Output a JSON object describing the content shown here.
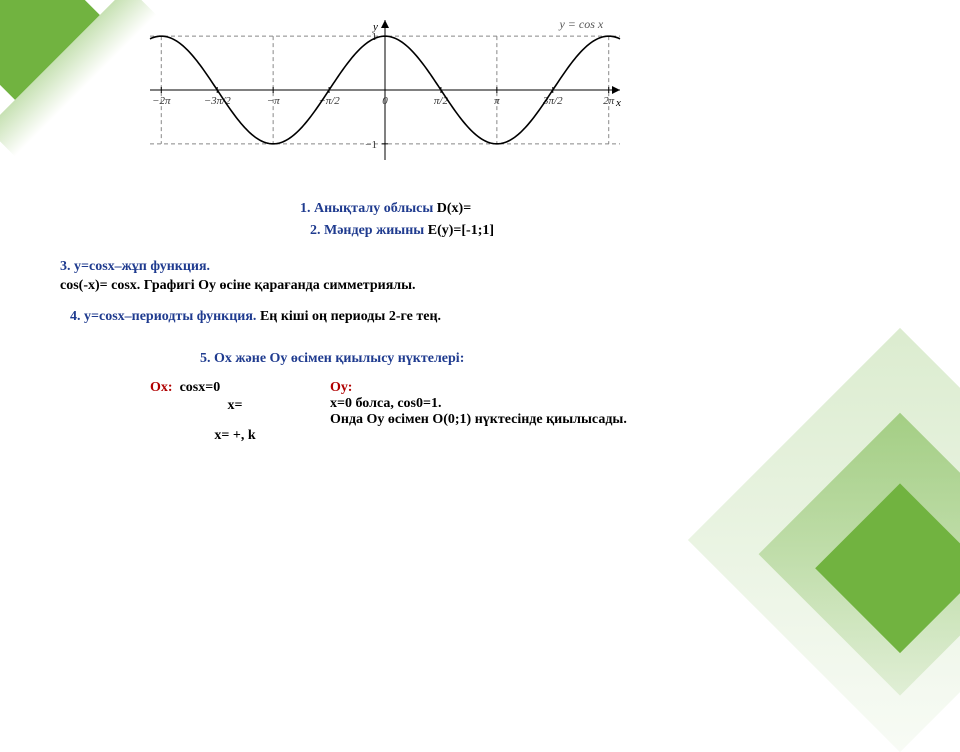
{
  "chart": {
    "type": "line",
    "title": "y = cos x",
    "title_color": "#555555",
    "title_fontsize": 12,
    "axis_label_x": "x",
    "axis_label_y": "y",
    "bg_color": "#ffffff",
    "axis_color": "#000000",
    "curve_color": "#000000",
    "dashed_color": "#888888",
    "xlim": [
      -6.6,
      6.6
    ],
    "ylim": [
      -1.3,
      1.3
    ],
    "amplitude": 1,
    "xticks": [
      {
        "val": -6.2832,
        "label": "−2π"
      },
      {
        "val": -4.7124,
        "label": "−3π/2"
      },
      {
        "val": -3.1416,
        "label": "−π"
      },
      {
        "val": -1.5708,
        "label": "−π/2"
      },
      {
        "val": 0,
        "label": "0"
      },
      {
        "val": 1.5708,
        "label": "π/2"
      },
      {
        "val": 3.1416,
        "label": "π"
      },
      {
        "val": 4.7124,
        "label": "3π/2"
      },
      {
        "val": 6.2832,
        "label": "2π"
      }
    ],
    "yticks": [
      {
        "val": 1,
        "label": "1"
      },
      {
        "val": -1,
        "label": "−1"
      }
    ],
    "line_width": 1.6,
    "label_fontsize": 11
  },
  "lines": {
    "l1_title": "1. Анықталу облысы ",
    "l1_value": "D(x)=",
    "l2_title": "2. Мәндер жиыны ",
    "l2_value": "E(y)=[-1;1]",
    "l3_title": "3. y=cosx–жұп функция.",
    "l3_detail": " cos(-x)= cosx. Графигі Оу өсіне қарағанда симметриялы.",
    "l4_title": "4. y=cosx–периодты функция. ",
    "l4_detail": "Ең кіші оң периоды 2-ге тең.",
    "l5": "5. Ох және Оу өсімен қиылысу нүктелері:"
  },
  "ox": {
    "head": "Ох:",
    "r1": "cosx=0",
    "r2": "x=",
    "r3": "x= +, k"
  },
  "oy": {
    "head": "Оу:",
    "r1": "x=0 болса, cos0=1.",
    "r2": "Онда Оу өсімен O(0;1) нүктесінде қиылысады."
  },
  "colors": {
    "blue": "#1f3b8f",
    "red": "#b00000",
    "green": "#71b340"
  }
}
